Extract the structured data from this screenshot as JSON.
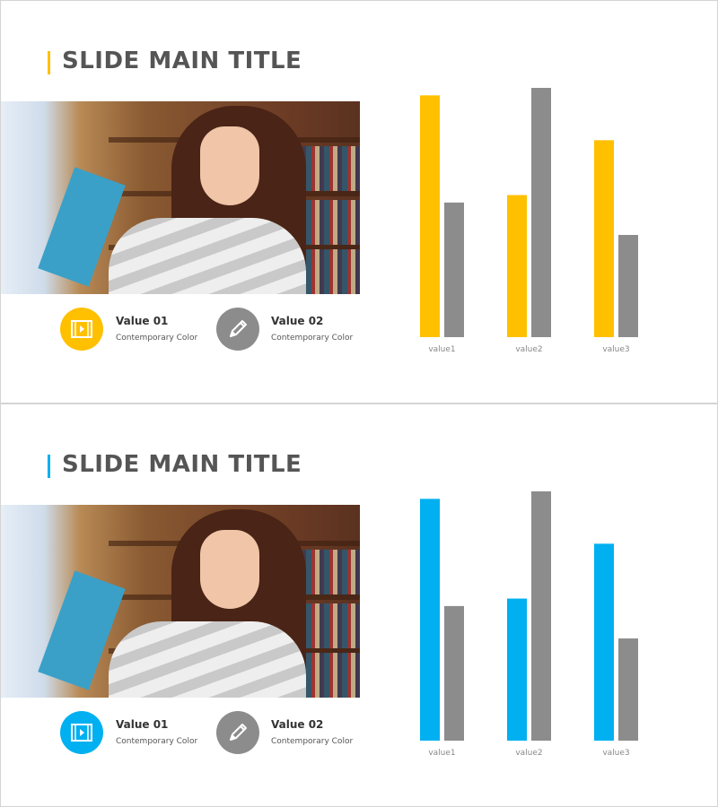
{
  "slides": [
    {
      "title": "SLIDE MAIN TITLE",
      "accent": "#FFC000",
      "items": [
        {
          "label": "Value 01",
          "sub": "Contemporary Color",
          "icon": "film-play-icon",
          "color": "#FFC000"
        },
        {
          "label": "Value 02",
          "sub": "Contemporary Color",
          "icon": "pencil-icon",
          "color": "#8C8C8C"
        }
      ],
      "chart_data": {
        "type": "bar",
        "categories": [
          "value1",
          "value2",
          "value3"
        ],
        "series": [
          {
            "values": [
              97,
              57,
              79
            ],
            "color": "#FFC000"
          },
          {
            "values": [
              54,
              100,
              41
            ],
            "color": "#8C8C8C"
          }
        ],
        "ylim": [
          0,
          100
        ],
        "grid": false,
        "axis_lines": false
      }
    },
    {
      "title": "SLIDE MAIN TITLE",
      "accent": "#00B0F0",
      "items": [
        {
          "label": "Value 01",
          "sub": "Contemporary Color",
          "icon": "film-play-icon",
          "color": "#00B0F0"
        },
        {
          "label": "Value 02",
          "sub": "Contemporary Color",
          "icon": "pencil-icon",
          "color": "#8C8C8C"
        }
      ],
      "chart_data": {
        "type": "bar",
        "categories": [
          "value1",
          "value2",
          "value3"
        ],
        "series": [
          {
            "values": [
              97,
              57,
              79
            ],
            "color": "#00B0F0"
          },
          {
            "values": [
              54,
              100,
              41
            ],
            "color": "#8C8C8C"
          }
        ],
        "ylim": [
          0,
          100
        ],
        "grid": false,
        "axis_lines": false
      }
    }
  ]
}
